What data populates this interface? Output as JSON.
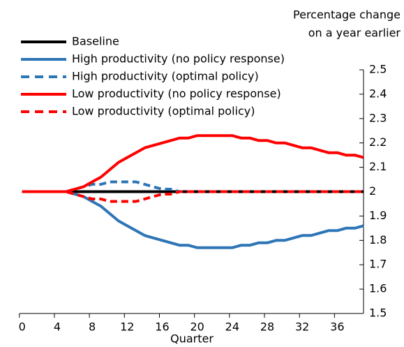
{
  "chart_data": {
    "type": "line",
    "y_label": [
      "Percentage change",
      "on a year earlier"
    ],
    "x_label": "Quarter",
    "x": [
      0,
      1,
      2,
      3,
      4,
      5,
      6,
      7,
      8,
      9,
      10,
      11,
      12,
      13,
      14,
      15,
      16,
      17,
      18,
      19,
      20,
      21,
      22,
      23,
      24,
      25,
      26,
      27,
      28,
      29,
      30,
      31,
      32,
      33,
      34,
      35,
      36,
      37,
      38,
      39
    ],
    "series": [
      {
        "name": "Baseline",
        "color": "#000000",
        "dashed": false,
        "values": [
          2,
          2,
          2,
          2,
          2,
          2,
          2,
          2,
          2,
          2,
          2,
          2,
          2,
          2,
          2,
          2,
          2,
          2,
          2,
          2,
          2,
          2,
          2,
          2,
          2,
          2,
          2,
          2,
          2,
          2,
          2,
          2,
          2,
          2,
          2,
          2,
          2,
          2,
          2,
          2
        ]
      },
      {
        "name": "High productivity (no policy response)",
        "color": "#2e75b6",
        "dashed": false,
        "values": [
          2,
          2,
          2,
          2,
          2,
          2,
          1.99,
          1.98,
          1.96,
          1.94,
          1.91,
          1.88,
          1.86,
          1.84,
          1.82,
          1.81,
          1.8,
          1.79,
          1.78,
          1.78,
          1.77,
          1.77,
          1.77,
          1.77,
          1.77,
          1.78,
          1.78,
          1.79,
          1.79,
          1.8,
          1.8,
          1.81,
          1.82,
          1.82,
          1.83,
          1.84,
          1.84,
          1.85,
          1.85,
          1.86
        ]
      },
      {
        "name": "High productivity (optimal policy)",
        "color": "#2e75b6",
        "dashed": true,
        "values": [
          2,
          2,
          2,
          2,
          2,
          2,
          2.01,
          2.02,
          2.03,
          2.03,
          2.04,
          2.04,
          2.04,
          2.04,
          2.03,
          2.02,
          2.01,
          2.01,
          2,
          2,
          2,
          2,
          2,
          2,
          2,
          2,
          2,
          2,
          2,
          2,
          2,
          2,
          2,
          2,
          2,
          2,
          2,
          2,
          2,
          2
        ]
      },
      {
        "name": "Low productivity (no policy response)",
        "color": "#ff0000",
        "dashed": false,
        "values": [
          2,
          2,
          2,
          2,
          2,
          2,
          2.01,
          2.02,
          2.04,
          2.06,
          2.09,
          2.12,
          2.14,
          2.16,
          2.18,
          2.19,
          2.2,
          2.21,
          2.22,
          2.22,
          2.23,
          2.23,
          2.23,
          2.23,
          2.23,
          2.22,
          2.22,
          2.21,
          2.21,
          2.2,
          2.2,
          2.19,
          2.18,
          2.18,
          2.17,
          2.16,
          2.16,
          2.15,
          2.15,
          2.14
        ]
      },
      {
        "name": "Low productivity (optimal policy)",
        "color": "#ff0000",
        "dashed": true,
        "values": [
          2,
          2,
          2,
          2,
          2,
          2,
          1.99,
          1.98,
          1.97,
          1.97,
          1.96,
          1.96,
          1.96,
          1.96,
          1.97,
          1.98,
          1.99,
          1.99,
          2,
          2,
          2,
          2,
          2,
          2,
          2,
          2,
          2,
          2,
          2,
          2,
          2,
          2,
          2,
          2,
          2,
          2,
          2,
          2,
          2,
          2
        ]
      }
    ],
    "xlim": [
      -0.3,
      39
    ],
    "xticks": [
      0,
      4,
      8,
      12,
      16,
      20,
      24,
      28,
      32,
      36
    ],
    "ylim": [
      1.5,
      2.5
    ],
    "yticks": [
      1.5,
      1.6,
      1.7,
      1.8,
      1.9,
      2,
      2.1,
      2.2,
      2.3,
      2.4,
      2.5
    ],
    "y_axis_side": "right",
    "grid": false,
    "legend": "top-left"
  }
}
